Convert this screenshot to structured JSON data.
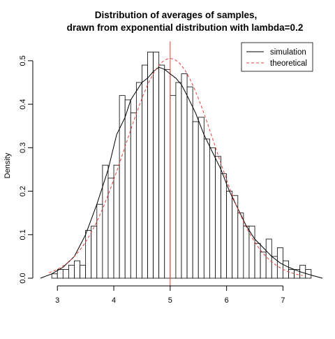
{
  "chart_data": {
    "type": "bar",
    "title_lines": [
      "Distribution of averages of samples,",
      "drawn from exponential distribution with lambda=0.2"
    ],
    "xlabel": "",
    "ylabel": "Density",
    "xlim": [
      2.7,
      7.7
    ],
    "ylim": [
      0,
      0.54
    ],
    "x_ticks": [
      3,
      4,
      5,
      6,
      7
    ],
    "y_ticks": [
      0.0,
      0.1,
      0.2,
      0.3,
      0.4,
      0.5
    ],
    "y_tick_labels": [
      "0.0",
      "0.1",
      "0.2",
      "0.3",
      "0.4",
      "0.5"
    ],
    "histogram": {
      "bin_width": 0.1,
      "bin_starts": [
        2.9,
        3.0,
        3.1,
        3.2,
        3.3,
        3.4,
        3.5,
        3.6,
        3.7,
        3.8,
        3.9,
        4.0,
        4.1,
        4.2,
        4.3,
        4.4,
        4.5,
        4.6,
        4.7,
        4.8,
        4.9,
        5.0,
        5.1,
        5.2,
        5.3,
        5.4,
        5.5,
        5.6,
        5.7,
        5.8,
        5.9,
        6.0,
        6.1,
        6.2,
        6.3,
        6.4,
        6.5,
        6.6,
        6.7,
        6.8,
        6.9,
        7.0,
        7.1,
        7.2,
        7.3,
        7.4
      ],
      "densities": [
        0.01,
        0.02,
        0.02,
        0.03,
        0.04,
        0.03,
        0.11,
        0.12,
        0.17,
        0.26,
        0.23,
        0.26,
        0.42,
        0.41,
        0.38,
        0.45,
        0.49,
        0.52,
        0.52,
        0.49,
        0.48,
        0.42,
        0.45,
        0.47,
        0.44,
        0.36,
        0.37,
        0.32,
        0.3,
        0.28,
        0.24,
        0.2,
        0.19,
        0.15,
        0.12,
        0.12,
        0.08,
        0.06,
        0.09,
        0.05,
        0.07,
        0.04,
        0.02,
        0.02,
        0.03,
        0.02
      ]
    },
    "series": [
      {
        "name": "simulation",
        "style": "solid",
        "color": "#000000",
        "x": [
          2.7,
          2.9,
          3.1,
          3.3,
          3.5,
          3.7,
          3.9,
          4.05,
          4.2,
          4.3,
          4.4,
          4.5,
          4.6,
          4.7,
          4.8,
          4.9,
          5.0,
          5.1,
          5.2,
          5.3,
          5.45,
          5.6,
          5.75,
          5.9,
          6.05,
          6.2,
          6.35,
          6.5,
          6.65,
          6.8,
          6.95,
          7.1,
          7.3,
          7.5,
          7.7
        ],
        "y": [
          0.0,
          0.01,
          0.025,
          0.05,
          0.1,
          0.17,
          0.25,
          0.33,
          0.37,
          0.41,
          0.43,
          0.45,
          0.46,
          0.475,
          0.485,
          0.48,
          0.47,
          0.46,
          0.445,
          0.42,
          0.38,
          0.33,
          0.29,
          0.25,
          0.2,
          0.16,
          0.12,
          0.09,
          0.07,
          0.05,
          0.035,
          0.025,
          0.015,
          0.007,
          0.0
        ]
      },
      {
        "name": "theoretical",
        "style": "dashed",
        "color": "#e8413c",
        "mean": 5,
        "sd": 0.79
      }
    ],
    "vertical_line": {
      "x": 5,
      "color": "#e8413c"
    },
    "legend": {
      "position": "top-right"
    },
    "grid": false
  }
}
